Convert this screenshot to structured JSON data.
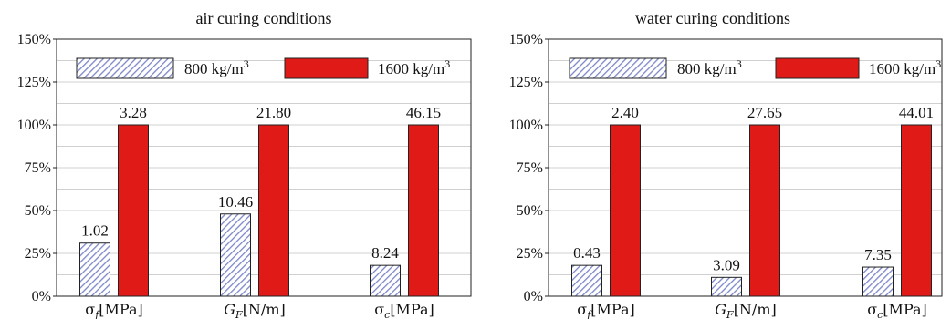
{
  "colors": {
    "light_series": "#9fa6d6",
    "dark_series": "#e01a16"
  },
  "chart_data": [
    {
      "type": "bar",
      "title": "air curing conditions",
      "yticks": [
        "0%",
        "25%",
        "50%",
        "75%",
        "100%",
        "125%",
        "150%"
      ],
      "ylim": [
        0,
        150
      ],
      "categories": [
        {
          "sym": "σ",
          "sub": "f",
          "unit": "[MPa]"
        },
        {
          "sym": "G",
          "sub": "F",
          "unit": "[N/m]"
        },
        {
          "sym": "σ",
          "sub": "c",
          "unit": "[MPa]"
        }
      ],
      "legend_placement": "top",
      "grid": true,
      "series": [
        {
          "name": "800 kg/m",
          "name_sup": "3",
          "pattern": "hatched",
          "values": [
            31,
            48,
            18
          ],
          "labels": [
            "1.02",
            "10.46",
            "8.24"
          ]
        },
        {
          "name": "1600 kg/m",
          "name_sup": "3",
          "pattern": "solid",
          "values": [
            100,
            100,
            100
          ],
          "labels": [
            "3.28",
            "21.80",
            "46.15"
          ]
        }
      ]
    },
    {
      "type": "bar",
      "title": "water curing conditions",
      "yticks": [
        "0%",
        "25%",
        "50%",
        "75%",
        "100%",
        "125%",
        "150%"
      ],
      "ylim": [
        0,
        150
      ],
      "categories": [
        {
          "sym": "σ",
          "sub": "f",
          "unit": "[MPa]"
        },
        {
          "sym": "G",
          "sub": "F",
          "unit": "[N/m]"
        },
        {
          "sym": "σ",
          "sub": "c",
          "unit": "[MPa]"
        }
      ],
      "legend_placement": "top",
      "grid": true,
      "series": [
        {
          "name": "800 kg/m",
          "name_sup": "3",
          "pattern": "hatched",
          "values": [
            18,
            11,
            17
          ],
          "labels": [
            "0.43",
            "3.09",
            "7.35"
          ]
        },
        {
          "name": "1600 kg/m",
          "name_sup": "3",
          "pattern": "solid",
          "values": [
            100,
            100,
            100
          ],
          "labels": [
            "2.40",
            "27.65",
            "44.01"
          ]
        }
      ]
    }
  ]
}
